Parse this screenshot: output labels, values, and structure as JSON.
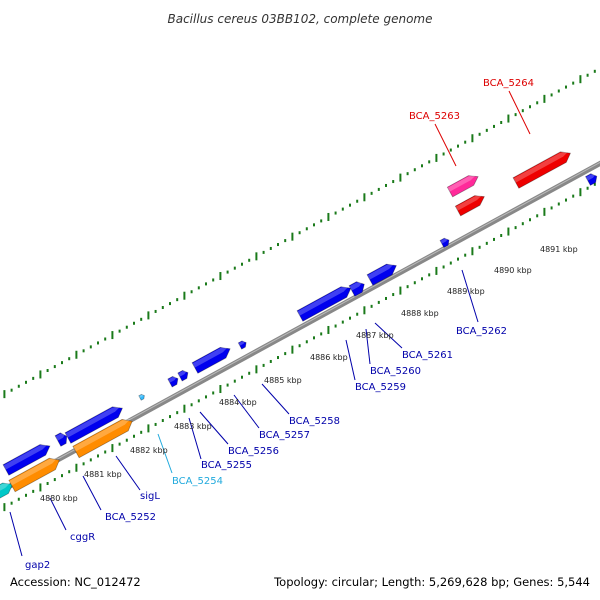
{
  "title": "Bacillus cereus 03BB102, complete genome",
  "footer": {
    "accession": "Accession: NC_012472",
    "summary": "Topology: circular; Length: 5,269,628 bp; Genes: 5,544"
  },
  "colors": {
    "backbone": "#888888",
    "tick": "#1a7a1a",
    "cds_blue": "#0000ee",
    "cds_orange": "#ff8c00",
    "cds_cyan": "#00c8c8",
    "cds_magenta": "#ff2a9a",
    "cds_red": "#ee0000",
    "label_blue": "#0000aa",
    "label_lightblue": "#22aadd",
    "label_red": "#dd0000"
  },
  "kbp_labels": [
    "4880 kbp",
    "4881 kbp",
    "4882 kbp",
    "4883 kbp",
    "4884 kbp",
    "4885 kbp",
    "4886 kbp",
    "4887 kbp",
    "4888 kbp",
    "4889 kbp",
    "4890 kbp",
    "4891 kbp"
  ],
  "gene_labels": [
    "gap2",
    "cggR",
    "BCA_5252",
    "sigL",
    "BCA_5254",
    "BCA_5255",
    "BCA_5256",
    "BCA_5257",
    "BCA_5258",
    "BCA_5259",
    "BCA_5260",
    "BCA_5261",
    "BCA_5262",
    "BCA_5263",
    "BCA_5264"
  ]
}
